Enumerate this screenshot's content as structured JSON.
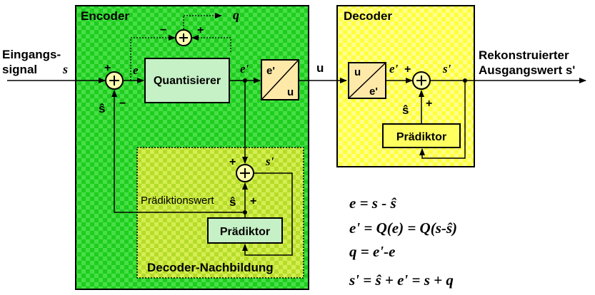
{
  "encoder": {
    "title": "Encoder",
    "quantizer": "Quantisierer",
    "converter_in": "e'",
    "converter_out": "u"
  },
  "decoder": {
    "title": "Decoder",
    "converter_in": "u",
    "converter_out": "e'",
    "predictor": "Prädiktor"
  },
  "reconstruction": {
    "title": "Decoder-Nachbildung",
    "predictor": "Prädiktor",
    "prediction_value": "Prädiktionswert"
  },
  "input_label": [
    "Eingangs-",
    "signal"
  ],
  "input_var": "s",
  "output_label": [
    "Rekonstruierter",
    "Ausgangswert s'"
  ],
  "signals": {
    "e": "e",
    "e_prime": "e'",
    "u": "u",
    "q": "q",
    "s_prime": "s'",
    "s_hat": "ŝ"
  },
  "signs": {
    "plus": "+",
    "minus": "−"
  },
  "formulas": [
    "e = s - ŝ",
    "e' = Q(e) = Q(s-ŝ)",
    "q = e'-e",
    "s' = ŝ + e' = s + q"
  ],
  "colors": {
    "encoder_bg": "#22cc22",
    "decoder_bg": "#ffff44",
    "inner_bg": "#c8e23a",
    "block_bg": "#c6f0c6",
    "converter_bg": "#ffe9a8"
  }
}
